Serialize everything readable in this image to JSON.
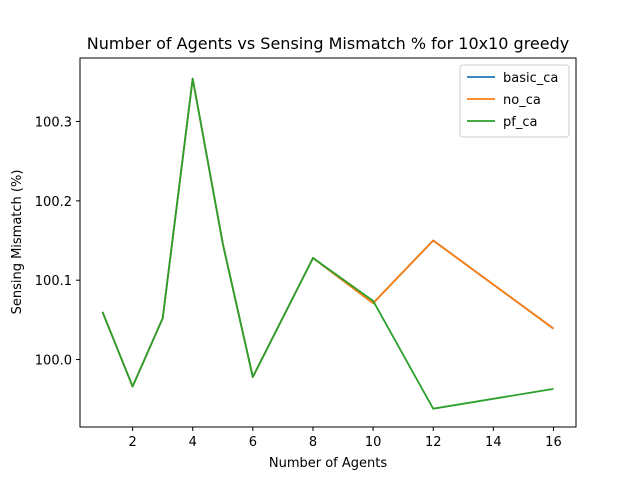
{
  "chart_data": {
    "type": "line",
    "title": "Number of Agents vs Sensing Mismatch % for 10x10 greedy",
    "xlabel": "Number of Agents",
    "ylabel": "Sensing Mismatch (%)",
    "x": [
      1,
      2,
      3,
      4,
      5,
      6,
      8,
      10,
      12,
      16
    ],
    "xlim": [
      0.25,
      16.75
    ],
    "ylim": [
      99.915,
      100.38
    ],
    "xticks": [
      2,
      4,
      6,
      8,
      10,
      12,
      14,
      16
    ],
    "yticks": [
      100.0,
      100.1,
      100.2,
      100.3
    ],
    "ytick_labels": [
      "100.0",
      "100.1",
      "100.2",
      "100.3"
    ],
    "grid": false,
    "legend_position": "top-right",
    "series": [
      {
        "name": "basic_ca",
        "color": "#1f77b4",
        "values": [
          100.06,
          99.966,
          100.052,
          100.354,
          100.146,
          99.978,
          100.128,
          100.071,
          100.15,
          100.039
        ]
      },
      {
        "name": "no_ca",
        "color": "#ff7f0e",
        "values": [
          100.06,
          99.966,
          100.052,
          100.354,
          100.146,
          99.978,
          100.128,
          100.071,
          100.15,
          100.039
        ]
      },
      {
        "name": "pf_ca",
        "color": "#2ca02c",
        "values": [
          100.06,
          99.966,
          100.052,
          100.354,
          100.146,
          99.978,
          100.128,
          100.074,
          99.938,
          99.963
        ]
      }
    ]
  }
}
